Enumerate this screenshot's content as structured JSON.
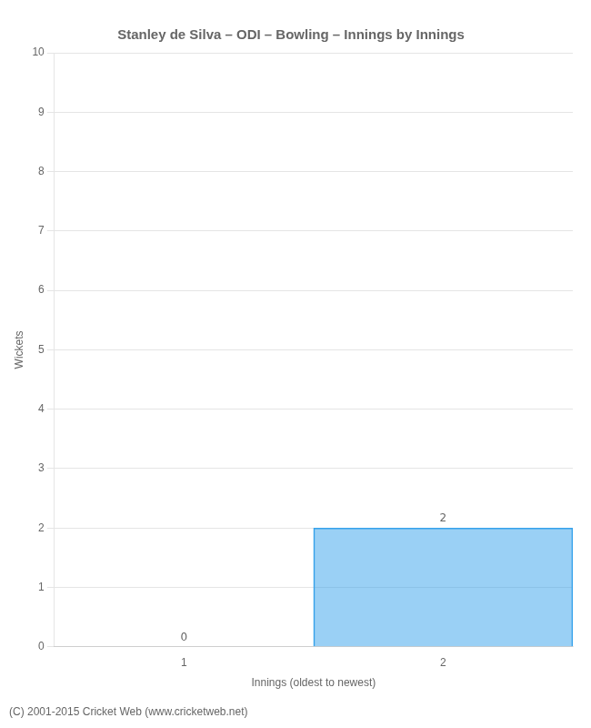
{
  "chart_data": {
    "type": "bar",
    "title": "Stanley de Silva – ODI – Bowling – Innings by Innings",
    "x_label": "Innings (oldest to newest)",
    "y_label": "Wickets",
    "x": [
      1,
      2
    ],
    "values": [
      0,
      2
    ],
    "xlim": [
      0.5,
      2.5
    ],
    "xticks": [
      1,
      2
    ],
    "ylim": [
      0,
      10
    ],
    "yticks": [
      0,
      1,
      2,
      3,
      4,
      5,
      6,
      7,
      8,
      9,
      10
    ],
    "grid": true,
    "data_labels": true,
    "annotations": [
      "(C) 2001-2015 Cricket Web (www.cricketweb.net)"
    ]
  }
}
